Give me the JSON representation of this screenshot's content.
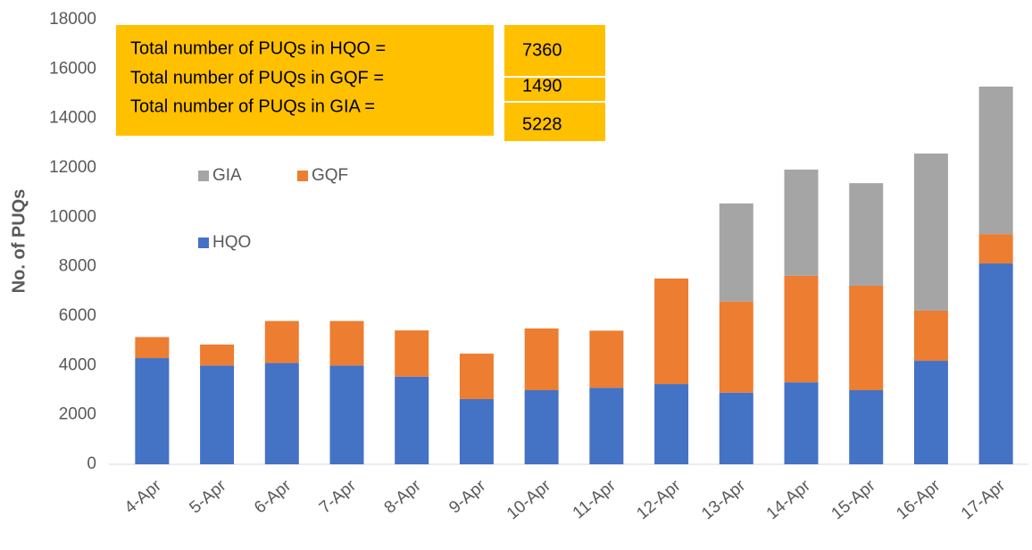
{
  "chart_data": {
    "type": "stacked_bar",
    "y_label": "No. of PUQs",
    "categories": [
      "4-Apr",
      "5-Apr",
      "6-Apr",
      "7-Apr",
      "8-Apr",
      "9-Apr",
      "10-Apr",
      "11-Apr",
      "12-Apr",
      "13-Apr",
      "14-Apr",
      "15-Apr",
      "16-Apr",
      "17-Apr"
    ],
    "series": [
      {
        "name": "HQO",
        "color": "#4472c4",
        "values": [
          4300,
          4000,
          4100,
          4000,
          3550,
          2640,
          3000,
          3100,
          3250,
          2900,
          3320,
          3000,
          4190,
          8130
        ]
      },
      {
        "name": "GQF",
        "color": "#ed7d31",
        "values": [
          850,
          850,
          1700,
          1800,
          1870,
          1840,
          2500,
          2310,
          4270,
          3690,
          4310,
          4230,
          2030,
          1190
        ]
      },
      {
        "name": "GIA",
        "color": "#a5a5a5",
        "values": [
          0,
          0,
          0,
          0,
          0,
          0,
          0,
          0,
          0,
          3970,
          4300,
          4150,
          6360,
          5970
        ]
      }
    ],
    "ylim": [
      0,
      18000
    ],
    "yticks": [
      0,
      2000,
      4000,
      6000,
      8000,
      10000,
      12000,
      14000,
      16000,
      18000
    ],
    "annotations": [
      {
        "label": "Total number of PUQs in HQO =",
        "value": 7360
      },
      {
        "label": "Total number of PUQs in GQF =",
        "value": 1490
      },
      {
        "label": "Total number of PUQs in GIA =",
        "value": 5228
      }
    ]
  }
}
